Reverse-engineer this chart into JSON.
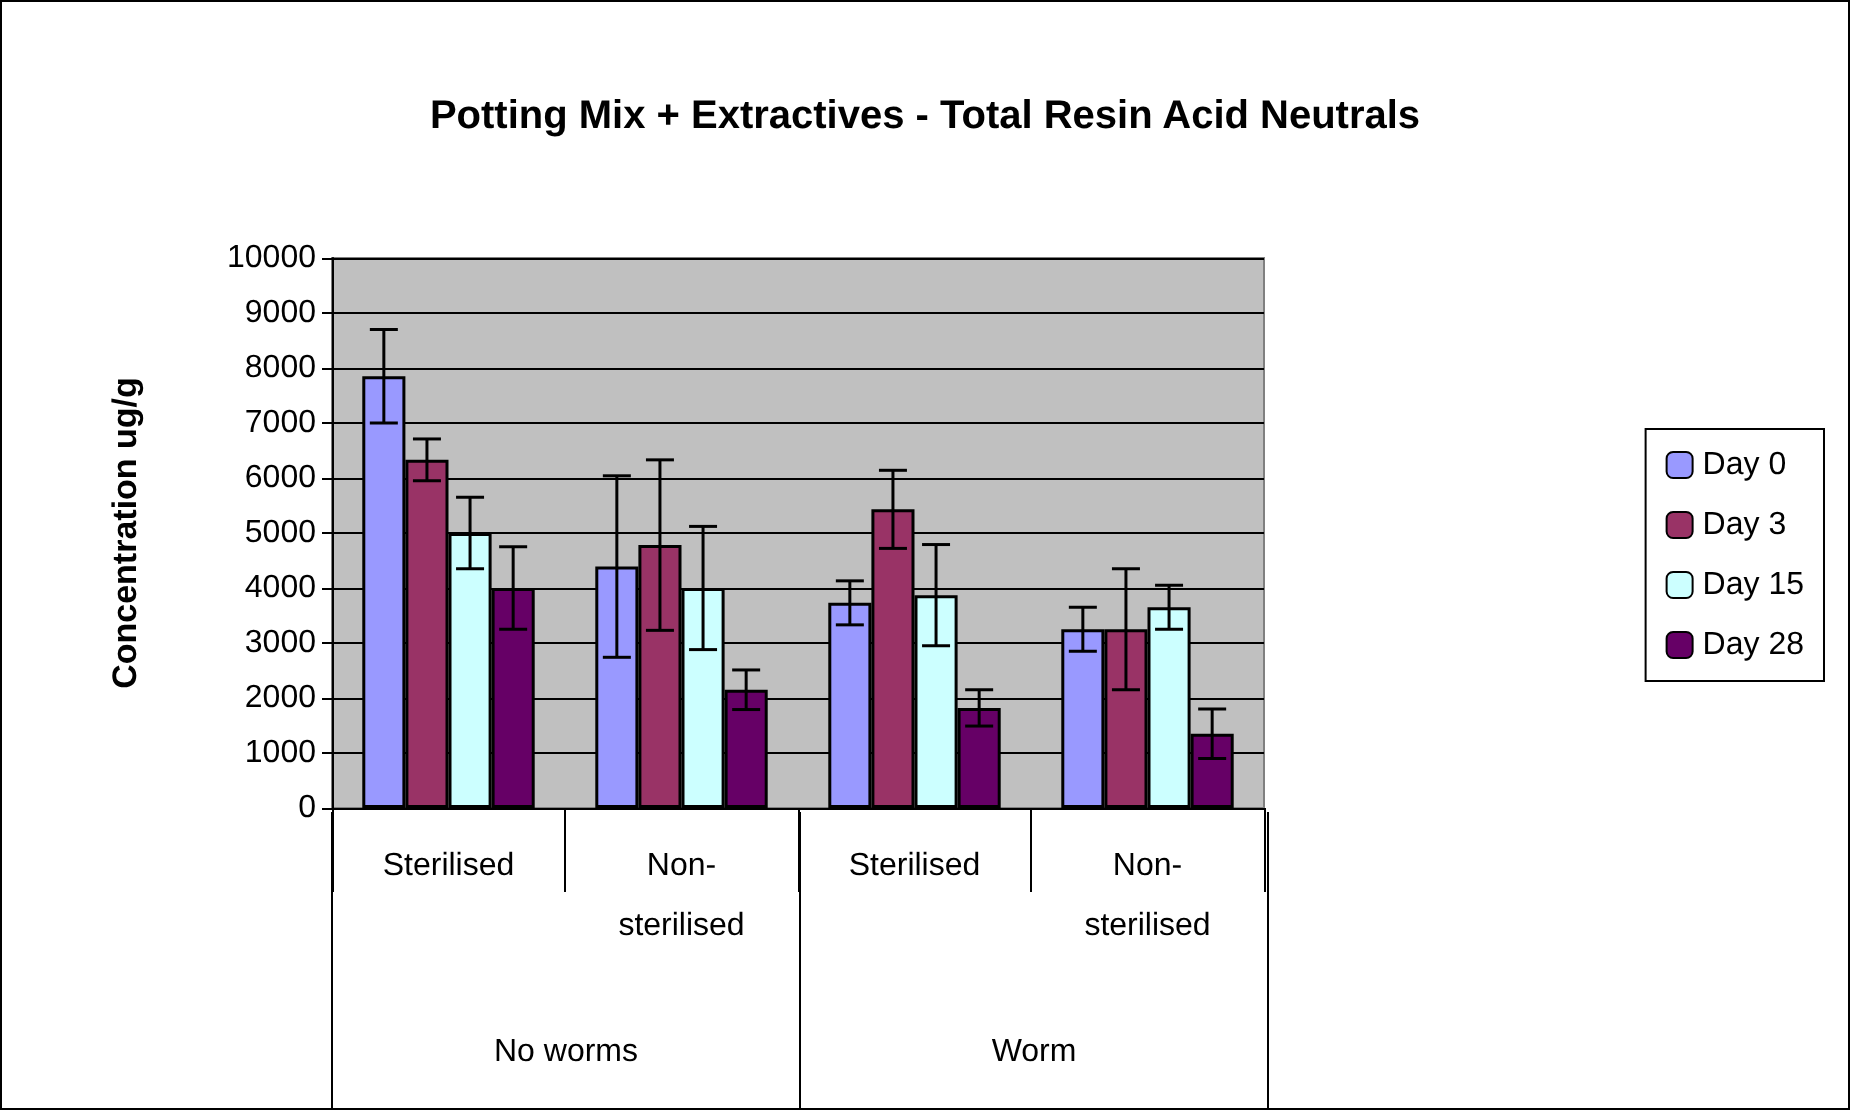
{
  "chart_data": {
    "type": "bar",
    "title": "Potting Mix + Extractives - Total Resin Acid Neutrals",
    "ylabel": "Concentration ug/g",
    "categories": [
      "Sterilised",
      "Non-sterilised",
      "Sterilised",
      "Non-sterilised"
    ],
    "annotations": [
      "No worms",
      "Worm"
    ],
    "series": [
      {
        "name": "Day 0",
        "color": "#9999ff",
        "values": [
          7850,
          4390,
          3730,
          3250
        ],
        "errors": [
          850,
          1650,
          400,
          400
        ]
      },
      {
        "name": "Day 3",
        "color": "#993366",
        "values": [
          6330,
          4780,
          5430,
          3250
        ],
        "errors": [
          380,
          1550,
          710,
          1100
        ]
      },
      {
        "name": "Day 15",
        "color": "#ccffff",
        "values": [
          5000,
          4000,
          3870,
          3650
        ],
        "errors": [
          650,
          1120,
          920,
          400
        ]
      },
      {
        "name": "Day 28",
        "color": "#660066",
        "values": [
          4000,
          2150,
          1820,
          1350
        ],
        "errors": [
          750,
          360,
          330,
          450
        ]
      }
    ],
    "ylim": [
      0,
      10000
    ],
    "yticks": [
      0,
      1000,
      2000,
      3000,
      4000,
      5000,
      6000,
      7000,
      8000,
      9000,
      10000
    ],
    "grid": "y",
    "legend": "right"
  }
}
